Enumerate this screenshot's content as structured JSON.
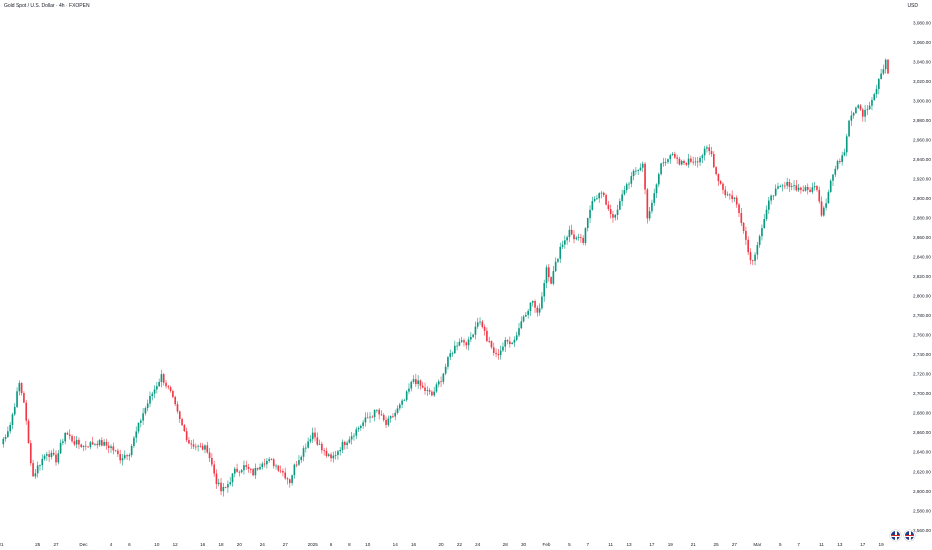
{
  "header": {
    "title": "Gold Spot / U.S. Dollar · 4h · FXOPEN",
    "currency": "USD"
  },
  "colors": {
    "up": "#089981",
    "down": "#f23645",
    "axis_text": "#131722"
  },
  "chart_data": {
    "type": "candlestick",
    "ylim": [
      2560,
      3095
    ],
    "y_ticks": [
      2560,
      2580,
      2600,
      2620,
      2640,
      2660,
      2680,
      2700,
      2720,
      2740,
      2760,
      2780,
      2800,
      2820,
      2840,
      2860,
      2880,
      2900,
      2920,
      2940,
      2960,
      2980,
      3000,
      3020,
      3040,
      3060,
      3080
    ],
    "y_tick_labels": [
      "2,560.00",
      "2,580.00",
      "2,600.00",
      "2,620.00",
      "2,640.00",
      "2,660.00",
      "2,680.00",
      "2,700.00",
      "2,720.00",
      "2,740.00",
      "2,760.00",
      "2,780.00",
      "2,800.00",
      "2,820.00",
      "2,840.00",
      "2,860.00",
      "2,880.00",
      "2,900.00",
      "2,920.00",
      "2,940.00",
      "2,960.00",
      "2,980.00",
      "3,000.00",
      "3,020.00",
      "3,040.00",
      "3,060.00",
      "3,080.00"
    ],
    "x_ticks": [
      {
        "label": "21",
        "bar": 0
      },
      {
        "label": "25",
        "bar": 16
      },
      {
        "label": "27",
        "bar": 24
      },
      {
        "label": "Dec",
        "bar": 36
      },
      {
        "label": "4",
        "bar": 48
      },
      {
        "label": "6",
        "bar": 56
      },
      {
        "label": "10",
        "bar": 68
      },
      {
        "label": "12",
        "bar": 76
      },
      {
        "label": "16",
        "bar": 88
      },
      {
        "label": "18",
        "bar": 96
      },
      {
        "label": "20",
        "bar": 104
      },
      {
        "label": "24",
        "bar": 114
      },
      {
        "label": "27",
        "bar": 124
      },
      {
        "label": "2025",
        "bar": 136
      },
      {
        "label": "6",
        "bar": 144
      },
      {
        "label": "8",
        "bar": 152
      },
      {
        "label": "10",
        "bar": 160
      },
      {
        "label": "14",
        "bar": 172
      },
      {
        "label": "16",
        "bar": 180
      },
      {
        "label": "20",
        "bar": 192
      },
      {
        "label": "22",
        "bar": 200
      },
      {
        "label": "24",
        "bar": 208
      },
      {
        "label": "28",
        "bar": 220
      },
      {
        "label": "30",
        "bar": 228
      },
      {
        "label": "Feb",
        "bar": 238
      },
      {
        "label": "5",
        "bar": 248
      },
      {
        "label": "7",
        "bar": 256
      },
      {
        "label": "11",
        "bar": 266
      },
      {
        "label": "13",
        "bar": 274
      },
      {
        "label": "17",
        "bar": 284
      },
      {
        "label": "19",
        "bar": 292
      },
      {
        "label": "21",
        "bar": 302
      },
      {
        "label": "25",
        "bar": 312
      },
      {
        "label": "27",
        "bar": 320
      },
      {
        "label": "Mar",
        "bar": 330
      },
      {
        "label": "5",
        "bar": 340
      },
      {
        "label": "7",
        "bar": 348
      },
      {
        "label": "11",
        "bar": 358
      },
      {
        "label": "13",
        "bar": 366
      },
      {
        "label": "17",
        "bar": 376
      },
      {
        "label": "19",
        "bar": 384
      }
    ],
    "waypoints": [
      [
        0,
        2648
      ],
      [
        4,
        2668
      ],
      [
        8,
        2710
      ],
      [
        10,
        2692
      ],
      [
        12,
        2648
      ],
      [
        14,
        2615
      ],
      [
        16,
        2625
      ],
      [
        20,
        2640
      ],
      [
        24,
        2632
      ],
      [
        28,
        2660
      ],
      [
        32,
        2650
      ],
      [
        36,
        2646
      ],
      [
        42,
        2650
      ],
      [
        48,
        2645
      ],
      [
        52,
        2634
      ],
      [
        56,
        2640
      ],
      [
        62,
        2680
      ],
      [
        66,
        2700
      ],
      [
        70,
        2718
      ],
      [
        74,
        2700
      ],
      [
        78,
        2672
      ],
      [
        82,
        2650
      ],
      [
        86,
        2645
      ],
      [
        90,
        2643
      ],
      [
        94,
        2610
      ],
      [
        96,
        2600
      ],
      [
        98,
        2603
      ],
      [
        102,
        2620
      ],
      [
        106,
        2625
      ],
      [
        110,
        2618
      ],
      [
        114,
        2631
      ],
      [
        118,
        2630
      ],
      [
        122,
        2622
      ],
      [
        126,
        2610
      ],
      [
        128,
        2625
      ],
      [
        132,
        2643
      ],
      [
        136,
        2660
      ],
      [
        140,
        2642
      ],
      [
        144,
        2632
      ],
      [
        148,
        2645
      ],
      [
        152,
        2655
      ],
      [
        156,
        2665
      ],
      [
        160,
        2675
      ],
      [
        164,
        2682
      ],
      [
        168,
        2668
      ],
      [
        172,
        2680
      ],
      [
        176,
        2693
      ],
      [
        180,
        2715
      ],
      [
        184,
        2705
      ],
      [
        188,
        2698
      ],
      [
        192,
        2715
      ],
      [
        196,
        2740
      ],
      [
        200,
        2755
      ],
      [
        204,
        2752
      ],
      [
        208,
        2775
      ],
      [
        210,
        2770
      ],
      [
        212,
        2755
      ],
      [
        216,
        2738
      ],
      [
        220,
        2752
      ],
      [
        224,
        2755
      ],
      [
        228,
        2780
      ],
      [
        232,
        2795
      ],
      [
        234,
        2780
      ],
      [
        236,
        2800
      ],
      [
        238,
        2830
      ],
      [
        240,
        2815
      ],
      [
        244,
        2850
      ],
      [
        248,
        2866
      ],
      [
        250,
        2860
      ],
      [
        254,
        2855
      ],
      [
        258,
        2900
      ],
      [
        262,
        2905
      ],
      [
        266,
        2885
      ],
      [
        268,
        2880
      ],
      [
        272,
        2910
      ],
      [
        276,
        2925
      ],
      [
        280,
        2935
      ],
      [
        282,
        2882
      ],
      [
        284,
        2893
      ],
      [
        288,
        2935
      ],
      [
        292,
        2945
      ],
      [
        296,
        2935
      ],
      [
        300,
        2938
      ],
      [
        304,
        2940
      ],
      [
        308,
        2950
      ],
      [
        310,
        2945
      ],
      [
        312,
        2925
      ],
      [
        316,
        2905
      ],
      [
        320,
        2900
      ],
      [
        324,
        2870
      ],
      [
        326,
        2845
      ],
      [
        328,
        2835
      ],
      [
        330,
        2855
      ],
      [
        334,
        2885
      ],
      [
        336,
        2905
      ],
      [
        340,
        2910
      ],
      [
        344,
        2915
      ],
      [
        348,
        2910
      ],
      [
        352,
        2908
      ],
      [
        356,
        2912
      ],
      [
        358,
        2885
      ],
      [
        360,
        2898
      ],
      [
        362,
        2918
      ],
      [
        364,
        2930
      ],
      [
        366,
        2940
      ],
      [
        368,
        2950
      ],
      [
        370,
        2982
      ],
      [
        374,
        2998
      ],
      [
        376,
        2985
      ],
      [
        380,
        2998
      ],
      [
        384,
        3028
      ],
      [
        386,
        3040
      ],
      [
        387,
        3028
      ]
    ],
    "grid": false,
    "legend": "none"
  }
}
